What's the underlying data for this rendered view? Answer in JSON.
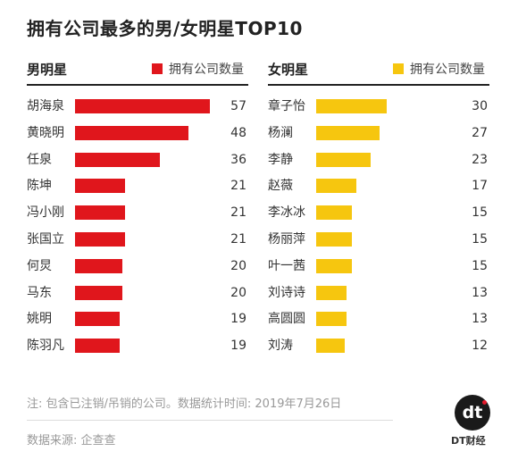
{
  "title": "拥有公司最多的男/女明星TOP10",
  "chart_data": [
    {
      "type": "bar",
      "orientation": "horizontal",
      "title": "男明星",
      "legend": "拥有公司数量",
      "color": "#e0161c",
      "categories": [
        "胡海泉",
        "黄晓明",
        "任泉",
        "陈坤",
        "冯小刚",
        "张国立",
        "何炅",
        "马东",
        "姚明",
        "陈羽凡"
      ],
      "values": [
        57,
        48,
        36,
        21,
        21,
        21,
        20,
        20,
        19,
        19
      ],
      "xlim": [
        0,
        57
      ]
    },
    {
      "type": "bar",
      "orientation": "horizontal",
      "title": "女明星",
      "legend": "拥有公司数量",
      "color": "#f6c60f",
      "categories": [
        "章子怡",
        "杨澜",
        "李静",
        "赵薇",
        "李冰冰",
        "杨丽萍",
        "叶一茜",
        "刘诗诗",
        "高圆圆",
        "刘涛"
      ],
      "values": [
        30,
        27,
        23,
        17,
        15,
        15,
        15,
        13,
        13,
        12
      ],
      "xlim": [
        0,
        30
      ]
    }
  ],
  "footer": {
    "note": "注: 包含已注销/吊销的公司。数据统计时间: 2019年7月26日",
    "source": "数据来源: 企查查"
  },
  "brand": {
    "logo_text": "dt",
    "name": "DT财经"
  }
}
